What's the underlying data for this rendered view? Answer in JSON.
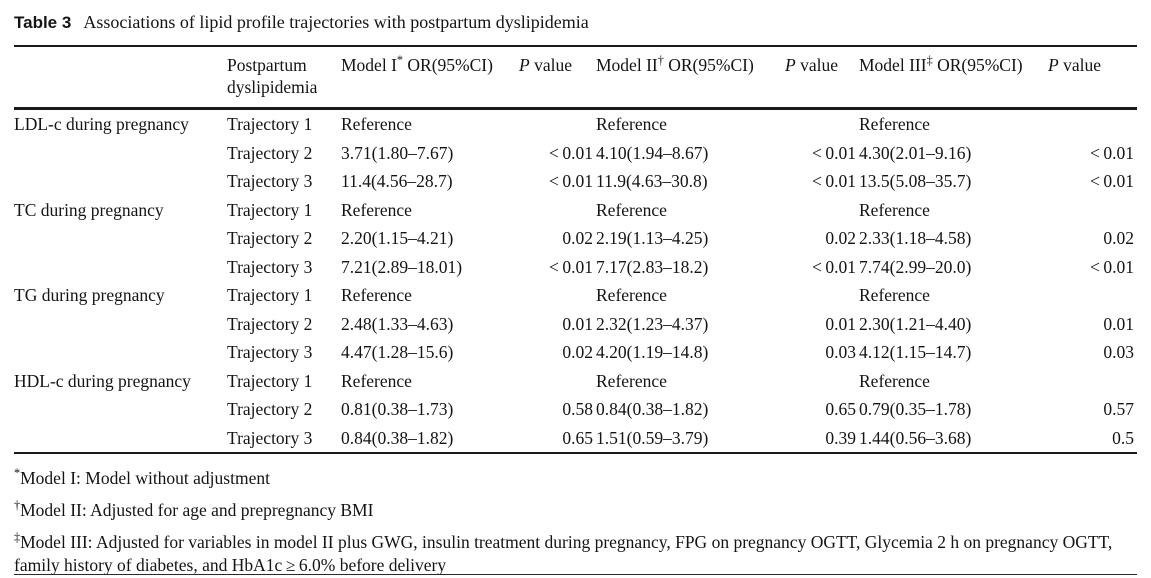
{
  "colors": {
    "background": "#ffffff",
    "text": "#141414",
    "rule": "#1a1a1a"
  },
  "title": {
    "label": "Table 3",
    "caption": "Associations of lipid profile trajectories with postpartum dyslipidemia"
  },
  "table": {
    "header": {
      "group": "",
      "postpartum": "Postpartum dyslipidemia",
      "models": [
        {
          "name": "Model I",
          "marker": "*",
          "or_label": " OR(95%CI)"
        },
        {
          "name": "Model II",
          "marker": "†",
          "or_label": " OR(95%CI)"
        },
        {
          "name": "Model III",
          "marker": "‡",
          "or_label": " OR(95%CI)"
        }
      ],
      "p_label": {
        "p": "P",
        "rest": " value"
      }
    },
    "rows": [
      {
        "group": "LDL-c during pregnancy",
        "trajectory": "Trajectory 1",
        "m1": "Reference",
        "p1": "",
        "m2": "Reference",
        "p2": "",
        "m3": "Reference",
        "p3": ""
      },
      {
        "group": "",
        "trajectory": "Trajectory 2",
        "m1": "3.71(1.80–7.67)",
        "p1": "< 0.01",
        "m2": "4.10(1.94–8.67)",
        "p2": "< 0.01",
        "m3": "4.30(2.01–9.16)",
        "p3": "< 0.01"
      },
      {
        "group": "",
        "trajectory": "Trajectory 3",
        "m1": "11.4(4.56–28.7)",
        "p1": "< 0.01",
        "m2": "11.9(4.63–30.8)",
        "p2": "< 0.01",
        "m3": "13.5(5.08–35.7)",
        "p3": "< 0.01"
      },
      {
        "group": "TC during pregnancy",
        "trajectory": "Trajectory 1",
        "m1": "Reference",
        "p1": "",
        "m2": "Reference",
        "p2": "",
        "m3": "Reference",
        "p3": ""
      },
      {
        "group": "",
        "trajectory": "Trajectory 2",
        "m1": "2.20(1.15–4.21)",
        "p1": "0.02",
        "m2": "2.19(1.13–4.25)",
        "p2": "0.02",
        "m3": "2.33(1.18–4.58)",
        "p3": "0.02"
      },
      {
        "group": "",
        "trajectory": "Trajectory 3",
        "m1": "7.21(2.89–18.01)",
        "p1": "< 0.01",
        "m2": "7.17(2.83–18.2)",
        "p2": "< 0.01",
        "m3": "7.74(2.99–20.0)",
        "p3": "< 0.01"
      },
      {
        "group": "TG during pregnancy",
        "trajectory": "Trajectory 1",
        "m1": "Reference",
        "p1": "",
        "m2": "Reference",
        "p2": "",
        "m3": "Reference",
        "p3": ""
      },
      {
        "group": "",
        "trajectory": "Trajectory 2",
        "m1": "2.48(1.33–4.63)",
        "p1": "0.01",
        "m2": "2.32(1.23–4.37)",
        "p2": "0.01",
        "m3": "2.30(1.21–4.40)",
        "p3": "0.01"
      },
      {
        "group": "",
        "trajectory": "Trajectory 3",
        "m1": "4.47(1.28–15.6)",
        "p1": "0.02",
        "m2": "4.20(1.19–14.8)",
        "p2": "0.03",
        "m3": "4.12(1.15–14.7)",
        "p3": "0.03"
      },
      {
        "group": "HDL-c during pregnancy",
        "trajectory": "Trajectory 1",
        "m1": "Reference",
        "p1": "",
        "m2": "Reference",
        "p2": "",
        "m3": "Reference",
        "p3": ""
      },
      {
        "group": "",
        "trajectory": "Trajectory 2",
        "m1": "0.81(0.38–1.73)",
        "p1": "0.58",
        "m2": "0.84(0.38–1.82)",
        "p2": "0.65",
        "m3": "0.79(0.35–1.78)",
        "p3": "0.57"
      },
      {
        "group": "",
        "trajectory": "Trajectory 3",
        "m1": "0.84(0.38–1.82)",
        "p1": "0.65",
        "m2": "1.51(0.59–3.79)",
        "p2": "0.39",
        "m3": "1.44(0.56–3.68)",
        "p3": "0.5"
      }
    ]
  },
  "footnotes": [
    {
      "marker": "*",
      "text": "Model I: Model without adjustment"
    },
    {
      "marker": "†",
      "text": "Model II: Adjusted for age and prepregnancy BMI"
    },
    {
      "marker": "‡",
      "text": "Model III: Adjusted for variables in model II plus GWG, insulin treatment during pregnancy, FPG on pregnancy OGTT, Glycemia 2 h on pregnancy OGTT, family history of diabetes, and HbA1c ≥ 6.0% before delivery"
    }
  ]
}
